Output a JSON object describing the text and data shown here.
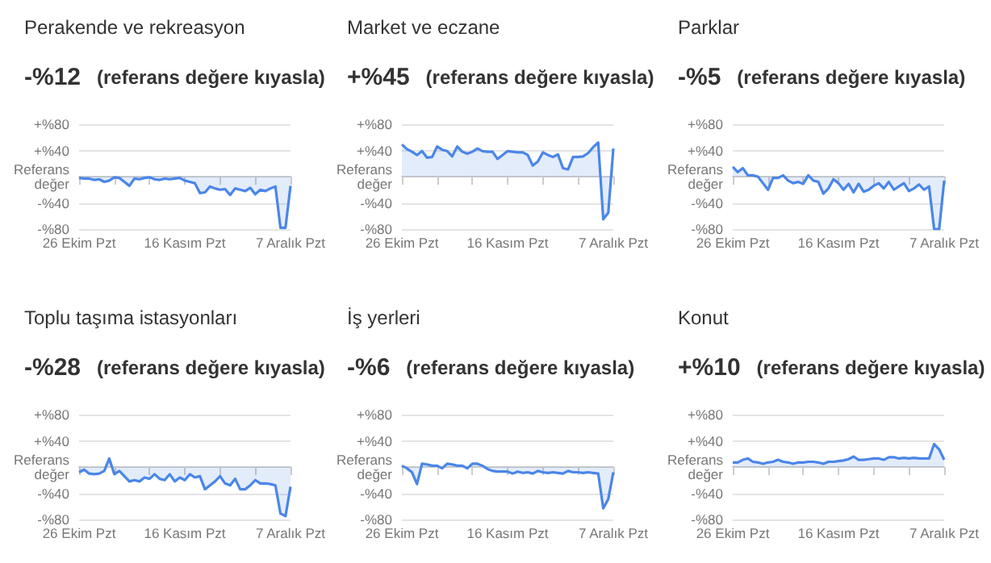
{
  "chart_data": [
    {
      "type": "area",
      "title": "Perakende ve rekreasyon",
      "subtitle": "-%12 (referans değere kıyasla)",
      "categories": [
        "26 Ekim Pzt",
        null,
        null,
        null,
        null,
        null,
        null,
        null,
        null,
        null,
        null,
        null,
        null,
        null,
        null,
        null,
        null,
        null,
        null,
        null,
        null,
        "16 Kasım Pzt",
        null,
        null,
        null,
        null,
        null,
        null,
        null,
        null,
        null,
        null,
        null,
        null,
        null,
        null,
        null,
        null,
        null,
        null,
        null,
        null,
        "7 Aralık Pzt"
      ],
      "series": [
        {
          "color": "#4a86e8",
          "values": [
            -2,
            -3,
            -3,
            -5,
            -4,
            -8,
            -6,
            -1,
            -2,
            -8,
            -14,
            -3,
            -4,
            -2,
            -1,
            -4,
            -5,
            -3,
            -4,
            -3,
            -2,
            -6,
            -8,
            -10,
            -25,
            -24,
            -15,
            -18,
            -20,
            -19,
            -28,
            -18,
            -20,
            -22,
            -17,
            -27,
            -20,
            -22,
            -18,
            -15,
            -78,
            -78,
            -14
          ]
        }
      ],
      "ylim": [
        -80,
        80
      ],
      "yticks": [
        {
          "value": -80,
          "label": "-%80"
        },
        {
          "value": -40,
          "label": "-%40"
        },
        {
          "value": 0,
          "label": "Referans değer"
        },
        {
          "value": 40,
          "label": "+%40"
        },
        {
          "value": 80,
          "label": "+%80"
        }
      ],
      "grid": "y"
    },
    {
      "type": "area",
      "title": "Market ve eczane",
      "subtitle": "+%45 (referans değere kıyasla)",
      "categories": [
        "26 Ekim Pzt",
        null,
        null,
        null,
        null,
        null,
        null,
        null,
        null,
        null,
        null,
        null,
        null,
        null,
        null,
        null,
        null,
        null,
        null,
        null,
        null,
        "16 Kasım Pzt",
        null,
        null,
        null,
        null,
        null,
        null,
        null,
        null,
        null,
        null,
        null,
        null,
        null,
        null,
        null,
        null,
        null,
        null,
        null,
        null,
        "7 Aralık Pzt"
      ],
      "series": [
        {
          "color": "#4a86e8",
          "values": [
            49,
            42,
            38,
            33,
            39,
            29,
            30,
            46,
            41,
            39,
            31,
            46,
            38,
            35,
            38,
            43,
            39,
            38,
            38,
            27,
            33,
            39,
            38,
            37,
            37,
            33,
            17,
            23,
            37,
            33,
            30,
            34,
            13,
            11,
            30,
            30,
            31,
            36,
            45,
            52,
            -65,
            -55,
            43
          ]
        }
      ],
      "ylim": [
        -80,
        80
      ],
      "yticks": [
        {
          "value": -80,
          "label": "-%80"
        },
        {
          "value": -40,
          "label": "-%40"
        },
        {
          "value": 0,
          "label": "Referans değer"
        },
        {
          "value": 40,
          "label": "+%40"
        },
        {
          "value": 80,
          "label": "+%80"
        }
      ],
      "grid": "y"
    },
    {
      "type": "area",
      "title": "Parklar",
      "subtitle": "-%5 (referans değere kıyasla)",
      "categories": [
        "26 Ekim Pzt",
        null,
        null,
        null,
        null,
        null,
        null,
        null,
        null,
        null,
        null,
        null,
        null,
        null,
        null,
        null,
        null,
        null,
        null,
        null,
        null,
        "16 Kasım Pzt",
        null,
        null,
        null,
        null,
        null,
        null,
        null,
        null,
        null,
        null,
        null,
        null,
        null,
        null,
        null,
        null,
        null,
        null,
        null,
        null,
        "7 Aralık Pzt"
      ],
      "series": [
        {
          "color": "#4a86e8",
          "values": [
            15,
            7,
            13,
            2,
            2,
            0,
            -10,
            -20,
            -2,
            -2,
            2,
            -6,
            -10,
            -8,
            -11,
            2,
            -6,
            -8,
            -26,
            -18,
            -4,
            -10,
            -20,
            -11,
            -24,
            -11,
            -23,
            -20,
            -14,
            -10,
            -18,
            -8,
            -20,
            -15,
            -10,
            -22,
            -18,
            -12,
            -20,
            -15,
            -80,
            -80,
            -6
          ]
        }
      ],
      "ylim": [
        -80,
        80
      ],
      "yticks": [
        {
          "value": -80,
          "label": "-%80"
        },
        {
          "value": -40,
          "label": "-%40"
        },
        {
          "value": 0,
          "label": "Referans değer"
        },
        {
          "value": 40,
          "label": "+%40"
        },
        {
          "value": 80,
          "label": "+%80"
        }
      ],
      "grid": "y"
    },
    {
      "type": "area",
      "title": "Toplu taşıma istasyonları",
      "subtitle": "-%28 (referans değere kıyasla)",
      "categories": [
        "26 Ekim Pzt",
        null,
        null,
        null,
        null,
        null,
        null,
        null,
        null,
        null,
        null,
        null,
        null,
        null,
        null,
        null,
        null,
        null,
        null,
        null,
        null,
        "16 Kasım Pzt",
        null,
        null,
        null,
        null,
        null,
        null,
        null,
        null,
        null,
        null,
        null,
        null,
        null,
        null,
        null,
        null,
        null,
        null,
        null,
        null,
        "7 Aralık Pzt"
      ],
      "series": [
        {
          "color": "#4a86e8",
          "values": [
            -8,
            -4,
            -10,
            -11,
            -10,
            -6,
            13,
            -11,
            -6,
            -14,
            -22,
            -20,
            -22,
            -16,
            -18,
            -11,
            -18,
            -20,
            -11,
            -22,
            -16,
            -20,
            -11,
            -16,
            -14,
            -34,
            -28,
            -22,
            -14,
            -25,
            -28,
            -18,
            -34,
            -34,
            -28,
            -20,
            -25,
            -25,
            -26,
            -28,
            -71,
            -75,
            -30
          ]
        }
      ],
      "ylim": [
        -80,
        80
      ],
      "yticks": [
        {
          "value": -80,
          "label": "-%80"
        },
        {
          "value": -40,
          "label": "-%40"
        },
        {
          "value": 0,
          "label": "Referans değer"
        },
        {
          "value": 40,
          "label": "+%40"
        },
        {
          "value": 80,
          "label": "+%80"
        }
      ],
      "grid": "y"
    },
    {
      "type": "area",
      "title": "İş yerleri",
      "subtitle": "-%6 (referans değere kıyasla)",
      "categories": [
        "26 Ekim Pzt",
        null,
        null,
        null,
        null,
        null,
        null,
        null,
        null,
        null,
        null,
        null,
        null,
        null,
        null,
        null,
        null,
        null,
        null,
        null,
        null,
        "16 Kasım Pzt",
        null,
        null,
        null,
        null,
        null,
        null,
        null,
        null,
        null,
        null,
        null,
        null,
        null,
        null,
        null,
        null,
        null,
        null,
        null,
        null,
        "7 Aralık Pzt"
      ],
      "series": [
        {
          "color": "#4a86e8",
          "values": [
            2,
            -2,
            -8,
            -26,
            5,
            4,
            2,
            2,
            -2,
            5,
            4,
            2,
            2,
            -2,
            5,
            5,
            2,
            -3,
            -6,
            -7,
            -7,
            -7,
            -10,
            -7,
            -9,
            -8,
            -10,
            -6,
            -8,
            -9,
            -8,
            -9,
            -10,
            -6,
            -8,
            -8,
            -9,
            -8,
            -9,
            -10,
            -63,
            -49,
            -8
          ]
        }
      ],
      "ylim": [
        -80,
        80
      ],
      "yticks": [
        {
          "value": -80,
          "label": "-%80"
        },
        {
          "value": -40,
          "label": "-%40"
        },
        {
          "value": 0,
          "label": "Referans değer"
        },
        {
          "value": 40,
          "label": "+%40"
        },
        {
          "value": 80,
          "label": "+%80"
        }
      ],
      "grid": "y"
    },
    {
      "type": "area",
      "title": "Konut",
      "subtitle": "+%10 (referans değere kıyasla)",
      "categories": [
        "26 Ekim Pzt",
        null,
        null,
        null,
        null,
        null,
        null,
        null,
        null,
        null,
        null,
        null,
        null,
        null,
        null,
        null,
        null,
        null,
        null,
        null,
        null,
        "16 Kasım Pzt",
        null,
        null,
        null,
        null,
        null,
        null,
        null,
        null,
        null,
        null,
        null,
        null,
        null,
        null,
        null,
        null,
        null,
        null,
        null,
        null,
        "7 Aralık Pzt"
      ],
      "series": [
        {
          "color": "#4a86e8",
          "values": [
            7,
            7,
            11,
            13,
            8,
            7,
            5,
            7,
            8,
            11,
            8,
            7,
            5,
            7,
            7,
            8,
            8,
            7,
            5,
            8,
            8,
            9,
            10,
            12,
            16,
            11,
            11,
            12,
            13,
            13,
            11,
            15,
            15,
            13,
            14,
            13,
            14,
            13,
            13,
            13,
            35,
            27,
            11
          ]
        }
      ],
      "ylim": [
        -80,
        80
      ],
      "yticks": [
        {
          "value": -80,
          "label": "-%80"
        },
        {
          "value": -40,
          "label": "-%40"
        },
        {
          "value": 0,
          "label": "Referans değer"
        },
        {
          "value": 40,
          "label": "+%40"
        },
        {
          "value": 80,
          "label": "+%80"
        }
      ],
      "grid": "y"
    }
  ]
}
